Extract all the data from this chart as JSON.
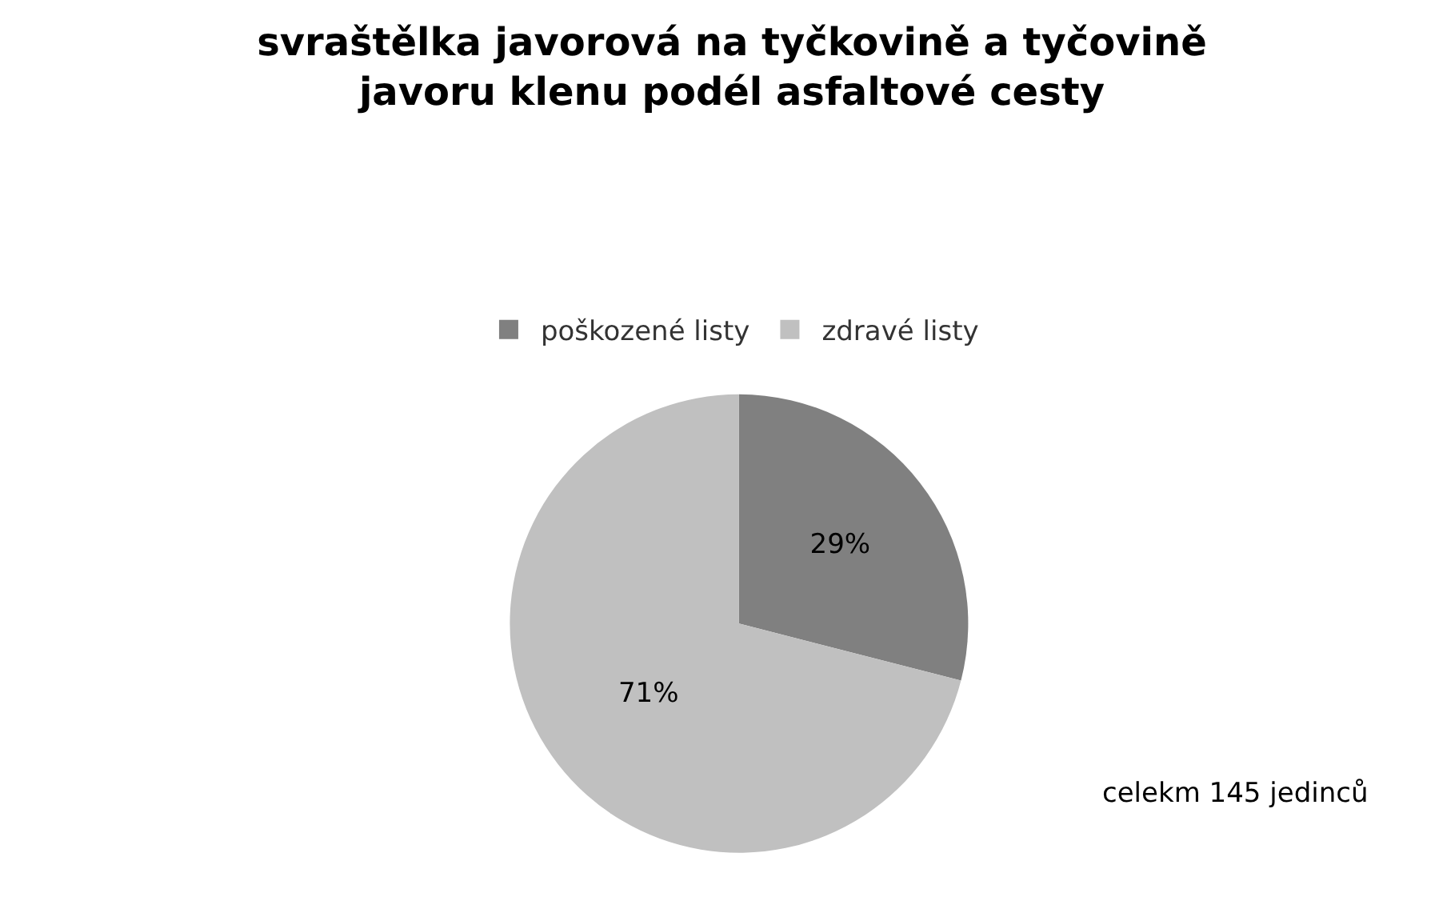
{
  "chart_data": {
    "type": "pie",
    "title": "svraštělka javorová na tyčkovině a tyčovině\njavoru klenu podél asfaltové cesty",
    "categories": [
      "poškozené listy",
      "zdravé listy"
    ],
    "values": [
      29,
      71
    ],
    "value_labels": [
      "29%",
      "71%"
    ],
    "colors": [
      "#808080",
      "#c0c0c0"
    ],
    "legend": "top",
    "annotations": [
      "celekm 145 jedinců"
    ]
  }
}
